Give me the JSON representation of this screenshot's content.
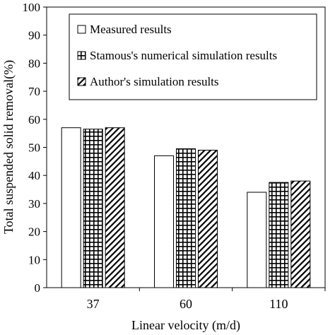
{
  "chart_data": {
    "type": "bar",
    "categories": [
      "37",
      "60",
      "110"
    ],
    "series": [
      {
        "name": "Measured results",
        "pattern": "solid",
        "values": [
          57,
          47,
          34
        ]
      },
      {
        "name": "Stamous's numerical simulation results",
        "pattern": "grid",
        "values": [
          56.5,
          49.5,
          37.5
        ]
      },
      {
        "name": "Author's simulation results",
        "pattern": "diagonal",
        "values": [
          57,
          49,
          38
        ]
      }
    ],
    "xlabel": "Linear velocity (m/d)",
    "ylabel": "Total suspended solid removal(%)",
    "ylim": [
      0,
      100
    ],
    "yticks": [
      0,
      10,
      20,
      30,
      40,
      50,
      60,
      70,
      80,
      90,
      100
    ],
    "grid": false,
    "legend_position": "top-right"
  },
  "colors": {
    "bar_fill": "#ffffff",
    "bar_stroke": "#000000",
    "pattern": "#000000"
  }
}
